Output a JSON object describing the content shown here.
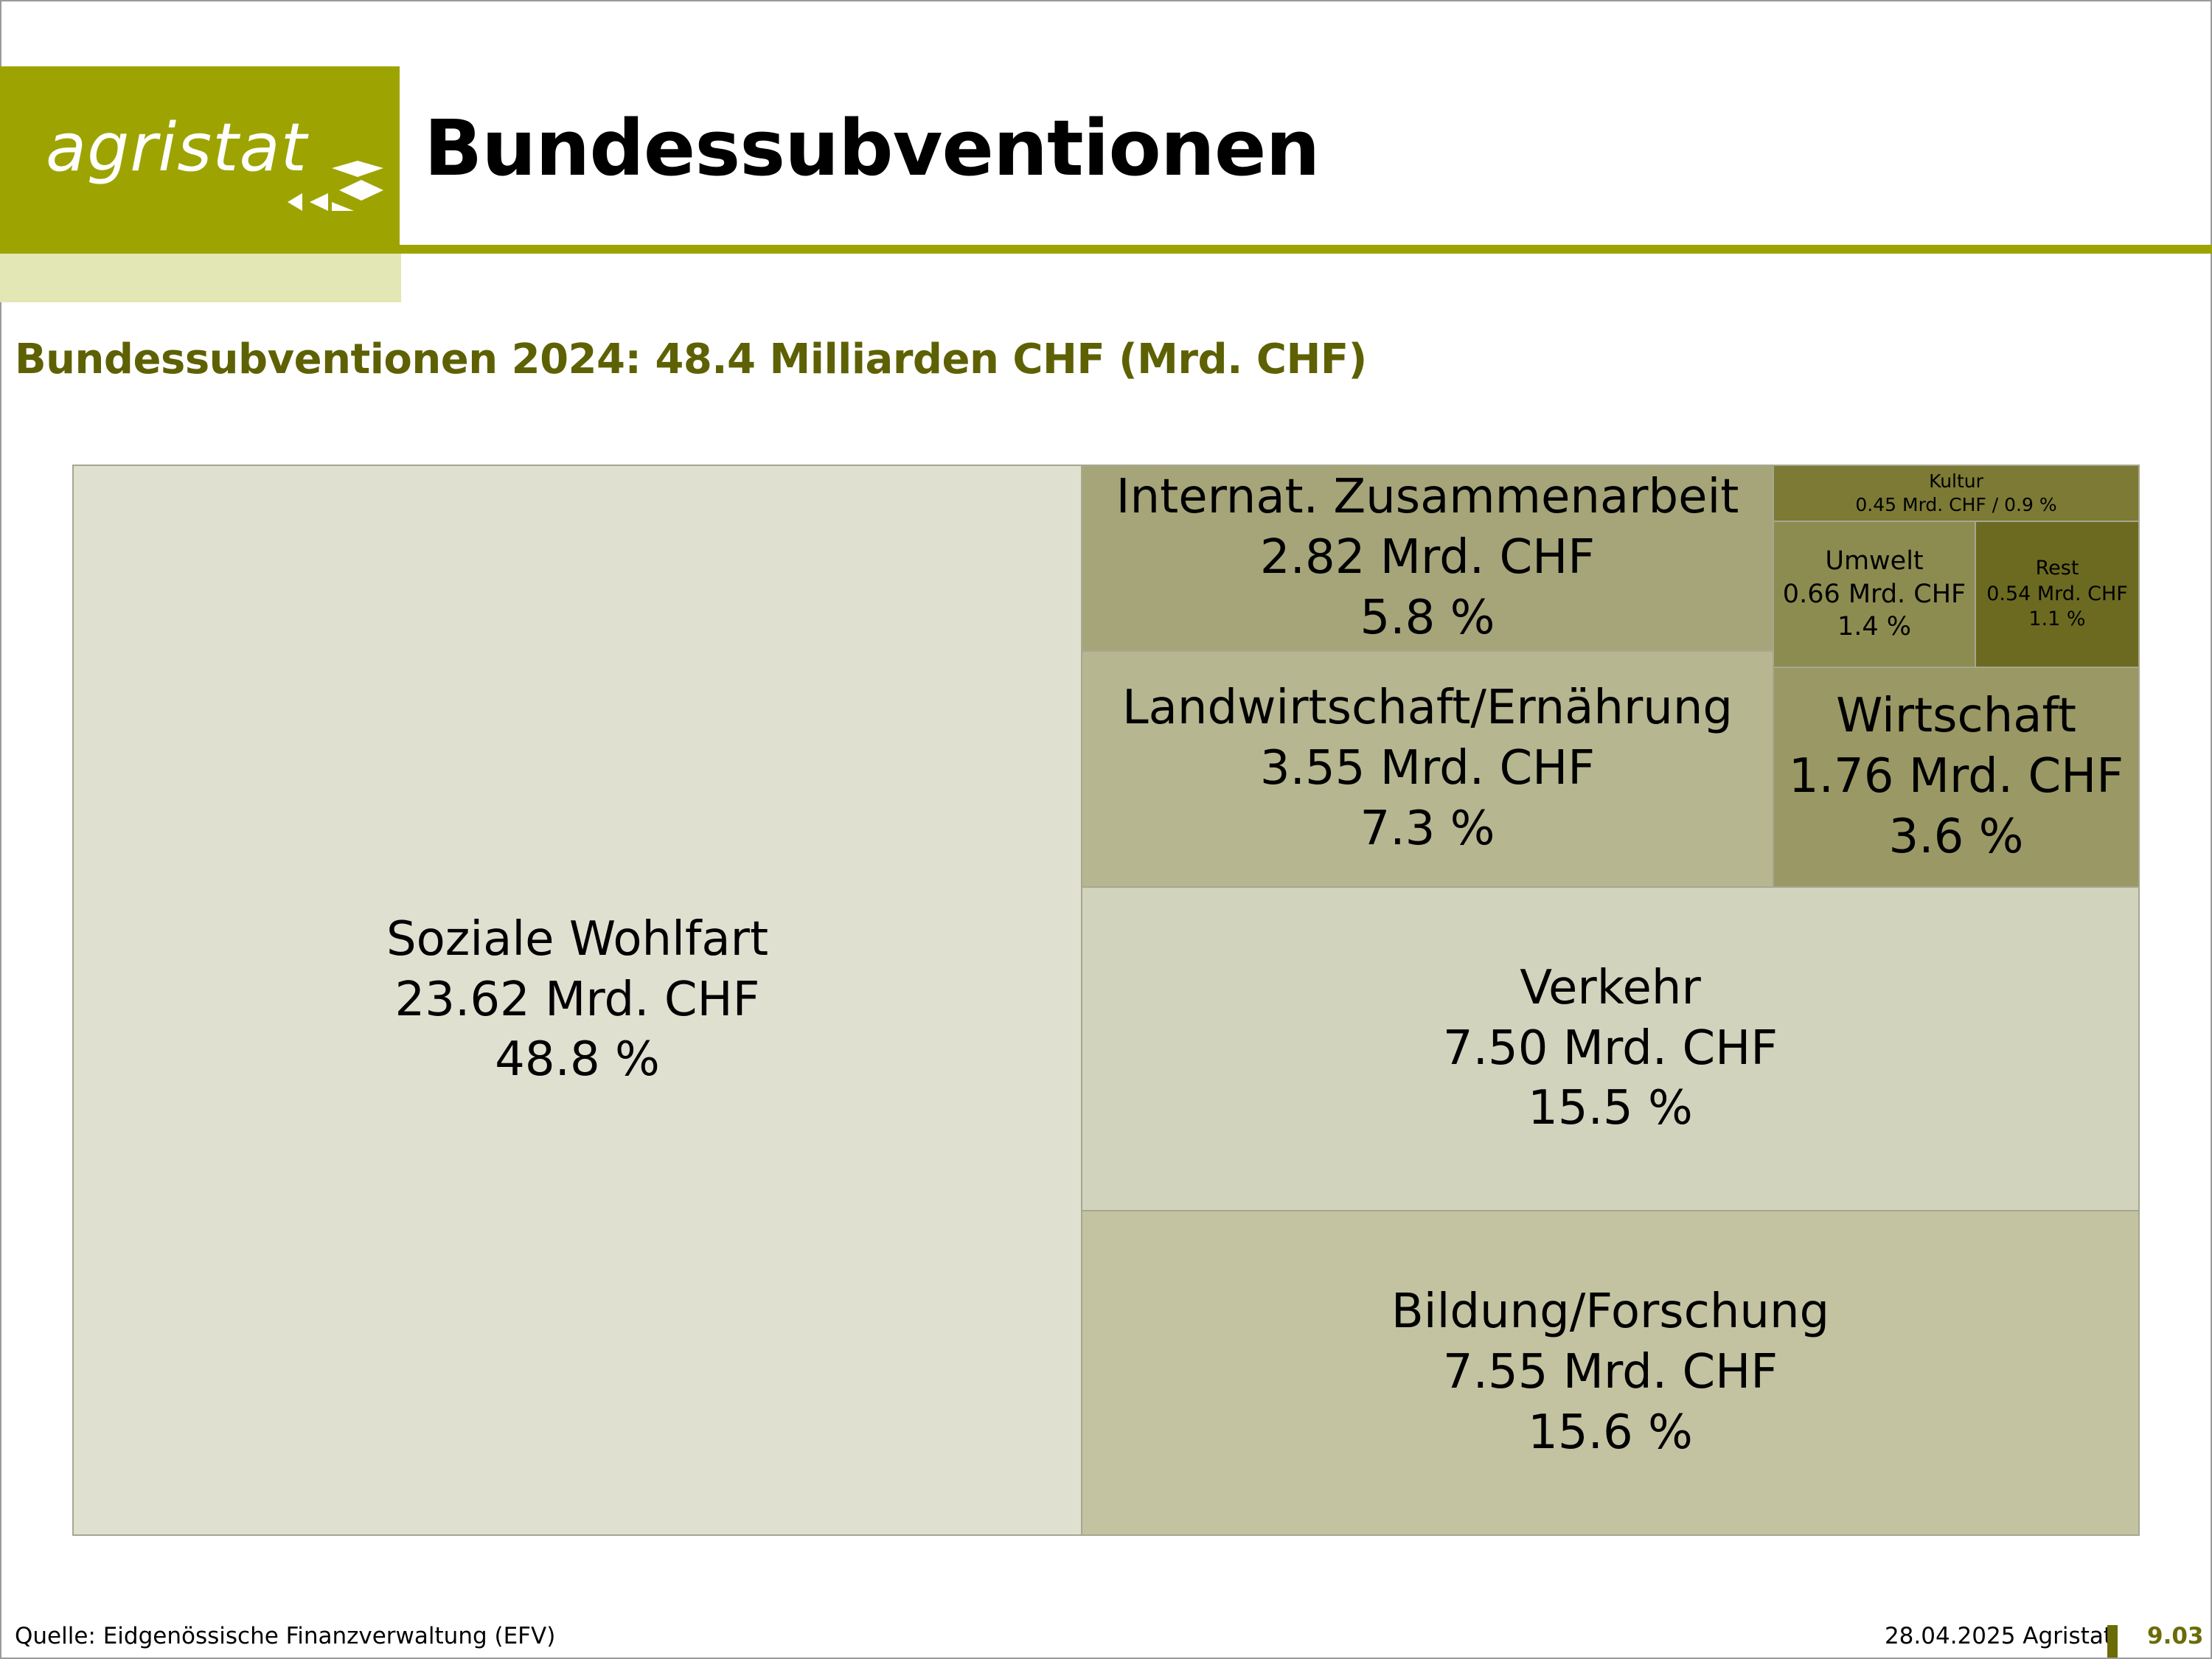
{
  "header": {
    "logo_text": "agristat",
    "title": "Bundessubventionen"
  },
  "colors": {
    "brand": "#9da402",
    "brand_light": "#e3e6b5",
    "subtitle": "#5e6103",
    "page_number": "#6b6c08"
  },
  "chart_data": {
    "type": "treemap",
    "title": "Bundessubventionen 2024: 48.4 Milliarden CHF (Mrd. CHF)",
    "unit": "Mrd. CHF",
    "items": [
      {
        "name": "Soziale Wohlfart",
        "value_label": "23.62 Mrd. CHF",
        "share_label": "48.8 %",
        "value": 23.62,
        "share": 48.8,
        "color": "#dfe0d0"
      },
      {
        "name": "Internat. Zusammenarbeit",
        "value_label": "2.82 Mrd. CHF",
        "share_label": "5.8 %",
        "value": 2.82,
        "share": 5.8,
        "color": "#a6a57a"
      },
      {
        "name": "Kultur",
        "value_label": "0.45 Mrd. CHF / 0.9 %",
        "value": 0.45,
        "share": 0.9,
        "color": "#7c7a35"
      },
      {
        "name": "Umwelt",
        "value_label": "0.66 Mrd. CHF",
        "share_label": "1.4 %",
        "value": 0.66,
        "share": 1.4,
        "color": "#8d8c50"
      },
      {
        "name": "Rest",
        "value_label": "0.54 Mrd. CHF",
        "share_label": "1.1 %",
        "value": 0.54,
        "share": 1.1,
        "color": "#6c6a20"
      },
      {
        "name": "Landwirtschaft/Ernährung",
        "value_label": "3.55 Mrd. CHF",
        "share_label": "7.3 %",
        "value": 3.55,
        "share": 7.3,
        "color": "#b6b690"
      },
      {
        "name": "Wirtschaft",
        "value_label": "1.76 Mrd. CHF",
        "share_label": "3.6 %",
        "value": 1.76,
        "share": 3.6,
        "color": "#9a9965"
      },
      {
        "name": "Verkehr",
        "value_label": "7.50 Mrd. CHF",
        "share_label": "15.5 %",
        "value": 7.5,
        "share": 15.5,
        "color": "#d2d3bc"
      },
      {
        "name": "Bildung/Forschung",
        "value_label": "7.55 Mrd. CHF",
        "share_label": "15.6 %",
        "value": 7.55,
        "share": 15.6,
        "color": "#c3c3a2"
      }
    ]
  },
  "footer": {
    "source": "Quelle: Eidgenössische Finanzverwaltung (EFV)",
    "date_org": "28.04.2025 Agristat",
    "page": "9.03"
  }
}
